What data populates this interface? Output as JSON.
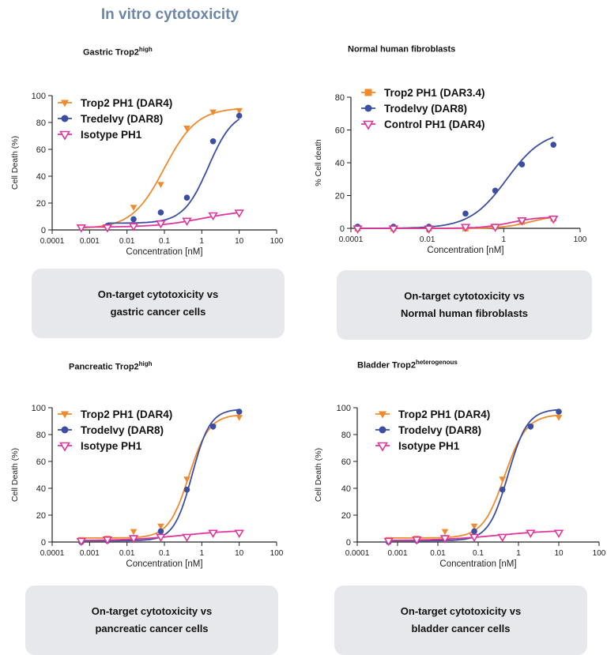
{
  "page": {
    "title": "In vitro cytotoxicity"
  },
  "panels": [
    {
      "title": "Gastric Trop2",
      "title_sup": "high",
      "box_lines": [
        "On-target cytotoxicity vs",
        "gastric cancer cells"
      ]
    },
    {
      "title": "Normal human fibroblasts",
      "title_sup": "",
      "box_lines": [
        "On-target cytotoxicity vs",
        "Normal human fibroblasts"
      ]
    },
    {
      "title": "Pancreatic Trop2",
      "title_sup": "high",
      "box_lines": [
        "On-target cytotoxicity vs",
        "pancreatic cancer cells"
      ]
    },
    {
      "title": "Bladder Trop2",
      "title_sup": "heterogenous",
      "box_lines": [
        "On-target cytotoxicity vs",
        "bladder cancer cells"
      ]
    }
  ],
  "chart_data": [
    {
      "type": "scatter",
      "xlabel": "Concentration [nM]",
      "ylabel": "Cell Death (%)",
      "xscale": "log",
      "xlim": [
        0.0001,
        100
      ],
      "ylim": [
        0,
        100
      ],
      "xticks": [
        "0.0001",
        "0.001",
        "0.01",
        "0.1",
        "1",
        "10",
        "100"
      ],
      "yticks": [
        0,
        20,
        40,
        60,
        80,
        100
      ],
      "legend": "top-left",
      "series": [
        {
          "name": "Trop2 PH1 (DAR4)",
          "color": "#f08a2c",
          "marker": "triangle-down",
          "x": [
            0.0006,
            0.003,
            0.015,
            0.08,
            0.4,
            2,
            10
          ],
          "y": [
            1,
            2,
            17,
            34,
            76,
            88,
            89
          ],
          "fit": {
            "bottom": 1,
            "top": 91,
            "ec50": 0.1,
            "hill": 1.0
          }
        },
        {
          "name": "Tredelvy (DAR8)",
          "color": "#3b4ea3",
          "marker": "circle",
          "x": [
            0.003,
            0.015,
            0.08,
            0.4,
            2,
            10
          ],
          "y": [
            3,
            8,
            13,
            24,
            66,
            85
          ],
          "fit": {
            "bottom": 5,
            "top": 89,
            "ec50": 1.5,
            "hill": 1.3
          }
        },
        {
          "name": "Isotype PH1",
          "color": "#e0359a",
          "marker": "triangle-open",
          "x": [
            0.0006,
            0.003,
            0.015,
            0.08,
            0.4,
            2,
            10
          ],
          "y": [
            2,
            2,
            3,
            5,
            7,
            11,
            13
          ],
          "fit": {
            "bottom": 2,
            "top": 15,
            "ec50": 1,
            "hill": 0.7
          }
        }
      ]
    },
    {
      "type": "scatter",
      "xlabel": "Concentration [nM]",
      "ylabel": "% Cell death",
      "xscale": "log",
      "xlim": [
        0.0001,
        100
      ],
      "ylim": [
        0,
        80
      ],
      "xticks": [
        "0.0001",
        "0.01",
        "1",
        "100"
      ],
      "yticks": [
        0,
        20,
        40,
        60,
        80
      ],
      "legend": "top-left",
      "series": [
        {
          "name": "Trop2 PH1 (DAR3.4)",
          "color": "#f08a2c",
          "marker": "square",
          "x": [
            0.00015,
            0.0013,
            0.011,
            0.1,
            0.6,
            3,
            20
          ],
          "y": [
            0,
            0,
            0,
            0,
            1,
            4,
            6
          ],
          "fit": {
            "bottom": 0,
            "top": 8,
            "ec50": 5,
            "hill": 1.2
          }
        },
        {
          "name": "Trodelvy (DAR8)",
          "color": "#3b4ea3",
          "marker": "circle",
          "x": [
            0.00015,
            0.0013,
            0.011,
            0.1,
            0.6,
            3,
            20
          ],
          "y": [
            1,
            1,
            1,
            9,
            23,
            39,
            51
          ],
          "fit": {
            "bottom": 0,
            "top": 60,
            "ec50": 1.2,
            "hill": 0.9
          }
        },
        {
          "name": "Control PH1 (DAR4)",
          "color": "#e0359a",
          "marker": "triangle-open",
          "x": [
            0.00015,
            0.0013,
            0.011,
            0.1,
            0.6,
            3,
            20
          ],
          "y": [
            0,
            0,
            0,
            1,
            1,
            5,
            6
          ],
          "fit": {
            "bottom": 0,
            "top": 7,
            "ec50": 1.5,
            "hill": 1.2
          }
        }
      ]
    },
    {
      "type": "scatter",
      "xlabel": "Concentration [nM]",
      "ylabel": "Cell Death (%)",
      "xscale": "log",
      "xlim": [
        0.0001,
        100
      ],
      "ylim": [
        0,
        100
      ],
      "xticks": [
        "0.0001",
        "0.001",
        "0.01",
        "0.1",
        "1",
        "10",
        "100"
      ],
      "yticks": [
        0,
        20,
        40,
        60,
        80,
        100
      ],
      "legend": "top-left",
      "series": [
        {
          "name": "Trop2 PH1 (DAR4)",
          "color": "#f08a2c",
          "marker": "triangle-down",
          "x": [
            0.0006,
            0.003,
            0.015,
            0.08,
            0.4,
            2,
            10
          ],
          "y": [
            2,
            3,
            8,
            12,
            47,
            86,
            93
          ],
          "fit": {
            "bottom": 3,
            "top": 95,
            "ec50": 0.45,
            "hill": 1.6
          }
        },
        {
          "name": "Trodelvy (DAR8)",
          "color": "#3b4ea3",
          "marker": "circle",
          "x": [
            0.0006,
            0.003,
            0.015,
            0.08,
            0.4,
            2,
            10
          ],
          "y": [
            0,
            1,
            3,
            8,
            39,
            86,
            97
          ],
          "fit": {
            "bottom": 1,
            "top": 99,
            "ec50": 0.55,
            "hill": 1.8
          }
        },
        {
          "name": "Isotype PH1",
          "color": "#e0359a",
          "marker": "triangle-open",
          "x": [
            0.0006,
            0.003,
            0.015,
            0.08,
            0.4,
            2,
            10
          ],
          "y": [
            1,
            2,
            3,
            4,
            4,
            7,
            7
          ],
          "fit": {
            "bottom": 1,
            "top": 9,
            "ec50": 0.3,
            "hill": 0.6
          }
        }
      ]
    },
    {
      "type": "scatter",
      "xlabel": "Concentration [nM]",
      "ylabel": "Cell Death (%)",
      "xscale": "log",
      "xlim": [
        0.0001,
        100
      ],
      "ylim": [
        0,
        100
      ],
      "xticks": [
        "0.0001",
        "0.001",
        "0.01",
        "0.1",
        "1",
        "10",
        "100"
      ],
      "yticks": [
        0,
        20,
        40,
        60,
        80,
        100
      ],
      "legend": "top-left",
      "series": [
        {
          "name": "Trop2 PH1 (DAR4)",
          "color": "#f08a2c",
          "marker": "triangle-down",
          "x": [
            0.0006,
            0.003,
            0.015,
            0.08,
            0.4,
            2,
            10
          ],
          "y": [
            2,
            3,
            8,
            12,
            47,
            86,
            93
          ],
          "fit": {
            "bottom": 3,
            "top": 95,
            "ec50": 0.45,
            "hill": 1.6
          }
        },
        {
          "name": "Trodelvy (DAR8)",
          "color": "#3b4ea3",
          "marker": "circle",
          "x": [
            0.0006,
            0.003,
            0.015,
            0.08,
            0.4,
            2,
            10
          ],
          "y": [
            0,
            1,
            3,
            8,
            39,
            86,
            97
          ],
          "fit": {
            "bottom": 1,
            "top": 99,
            "ec50": 0.55,
            "hill": 1.8
          }
        },
        {
          "name": "Isotype PH1",
          "color": "#e0359a",
          "marker": "triangle-open",
          "x": [
            0.0006,
            0.003,
            0.015,
            0.08,
            0.4,
            2,
            10
          ],
          "y": [
            1,
            2,
            3,
            4,
            4,
            7,
            7
          ],
          "fit": {
            "bottom": 1,
            "top": 9,
            "ec50": 0.3,
            "hill": 0.6
          }
        }
      ]
    }
  ]
}
